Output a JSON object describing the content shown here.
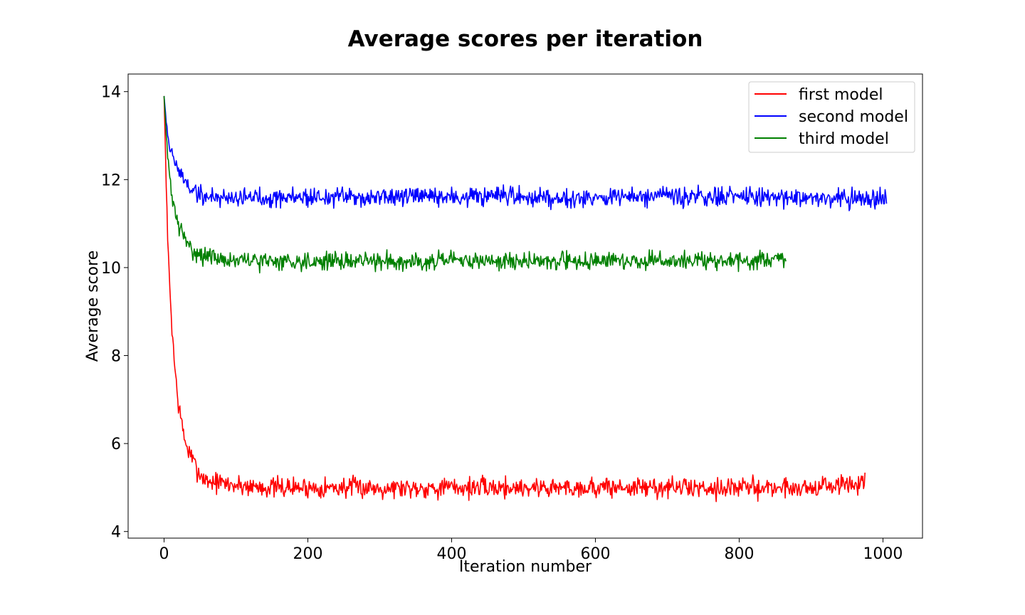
{
  "chart_data": {
    "type": "line",
    "title": "Average scores per iteration",
    "xlabel": "Iteration number",
    "ylabel": "Average score",
    "xlim": [
      -50,
      1055
    ],
    "ylim": [
      3.85,
      14.4
    ],
    "xticks": [
      0,
      200,
      400,
      600,
      800,
      1000
    ],
    "yticks": [
      4,
      6,
      8,
      10,
      12,
      14
    ],
    "xtick_labels": [
      "0",
      "200",
      "400",
      "600",
      "800",
      "1000"
    ],
    "ytick_labels": [
      "4",
      "6",
      "8",
      "10",
      "12",
      "14"
    ],
    "grid": false,
    "legend_position": "top-right",
    "series": [
      {
        "name": "first model",
        "color": "#ff0000",
        "x": [
          0,
          5,
          10,
          15,
          20,
          25,
          30,
          40,
          50,
          60,
          80,
          100,
          150,
          200,
          300,
          400,
          500,
          600,
          700,
          800,
          900,
          975
        ],
        "values": [
          13.9,
          10.6,
          8.9,
          7.7,
          6.9,
          6.4,
          6.0,
          5.6,
          5.3,
          5.15,
          5.1,
          5.05,
          5.0,
          5.0,
          5.0,
          5.0,
          5.0,
          5.0,
          5.0,
          5.0,
          5.0,
          5.1
        ],
        "noise_amplitude": 0.35,
        "seed": 7
      },
      {
        "name": "second model",
        "color": "#0000ff",
        "x": [
          0,
          5,
          10,
          20,
          30,
          40,
          50,
          60,
          80,
          100,
          200,
          300,
          400,
          500,
          600,
          700,
          800,
          900,
          1005
        ],
        "values": [
          13.9,
          13.0,
          12.6,
          12.2,
          11.95,
          11.75,
          11.65,
          11.6,
          11.6,
          11.6,
          11.6,
          11.6,
          11.6,
          11.6,
          11.6,
          11.6,
          11.6,
          11.6,
          11.55
        ],
        "noise_amplitude": 0.33,
        "seed": 19
      },
      {
        "name": "third model",
        "color": "#008000",
        "x": [
          0,
          5,
          10,
          20,
          30,
          40,
          50,
          60,
          80,
          100,
          200,
          300,
          400,
          500,
          600,
          700,
          800,
          865
        ],
        "values": [
          13.9,
          12.5,
          11.7,
          10.95,
          10.6,
          10.4,
          10.3,
          10.25,
          10.2,
          10.15,
          10.15,
          10.15,
          10.15,
          10.15,
          10.15,
          10.15,
          10.15,
          10.2
        ],
        "noise_amplitude": 0.3,
        "seed": 31
      }
    ]
  }
}
